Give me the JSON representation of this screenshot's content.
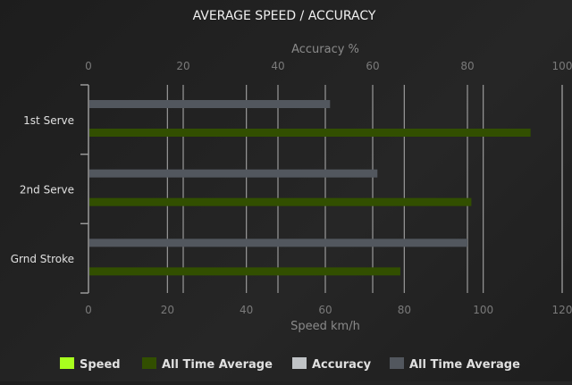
{
  "chart_data": {
    "type": "bar",
    "orientation": "horizontal",
    "title": "AVERAGE SPEED / ACCURACY",
    "categories": [
      "1st Serve",
      "2nd Serve",
      "Grnd Stroke"
    ],
    "x_top_axis": {
      "label": "Accuracy %",
      "range": [
        0,
        100
      ],
      "ticks": [
        0,
        20,
        40,
        60,
        80,
        100
      ]
    },
    "x_bottom_axis": {
      "label": "Speed km/h",
      "range": [
        0,
        120
      ],
      "ticks": [
        0,
        20,
        40,
        60,
        80,
        100,
        120
      ]
    },
    "grid": true,
    "legend_placement": "bottom",
    "series": [
      {
        "name": "Speed",
        "axis": "bottom",
        "color": "#a8ff1e",
        "values": [
          null,
          null,
          null
        ]
      },
      {
        "name": "All Time Average",
        "axis": "bottom",
        "color": "#324f00",
        "values": [
          112,
          97,
          79
        ]
      },
      {
        "name": "Accuracy",
        "axis": "top",
        "color": "#c0c3c6",
        "values": [
          null,
          null,
          null
        ]
      },
      {
        "name": "All Time Average",
        "axis": "top",
        "color": "#52575e",
        "values": [
          51,
          61,
          80
        ]
      }
    ]
  }
}
